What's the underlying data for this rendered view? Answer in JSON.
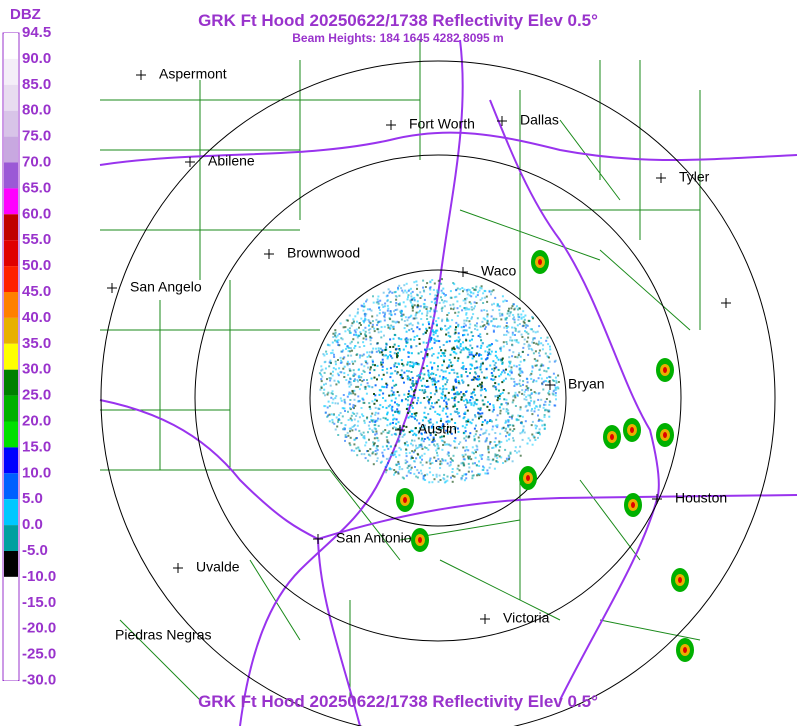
{
  "header": {
    "title": "GRK Ft Hood 20250622/1738 Reflectivity Elev 0.5°",
    "subtitle": "Beam Heights: 184 1645 4282 8095 m"
  },
  "footer": {
    "title": "GRK Ft Hood 20250622/1738 Reflectivity Elev 0.5°"
  },
  "legend": {
    "unit": "DBZ",
    "labels": [
      "94.5",
      "90.0",
      "85.0",
      "80.0",
      "75.0",
      "70.0",
      "65.0",
      "60.0",
      "55.0",
      "50.0",
      "45.0",
      "40.0",
      "35.0",
      "30.0",
      "25.0",
      "20.0",
      "15.0",
      "10.0",
      "5.0",
      "0.0",
      "-5.0",
      "-10.0",
      "-15.0",
      "-20.0",
      "-25.0",
      "-30.0"
    ]
  },
  "cities": [
    "Aspermont",
    "Fort Worth",
    "Dallas",
    "Abilene",
    "Tyler",
    "Brownwood",
    "Waco",
    "San Angelo",
    "Bryan",
    "Austin",
    "Houston",
    "San Antonio",
    "Uvalde",
    "Victoria",
    "Piedras Negras"
  ]
}
